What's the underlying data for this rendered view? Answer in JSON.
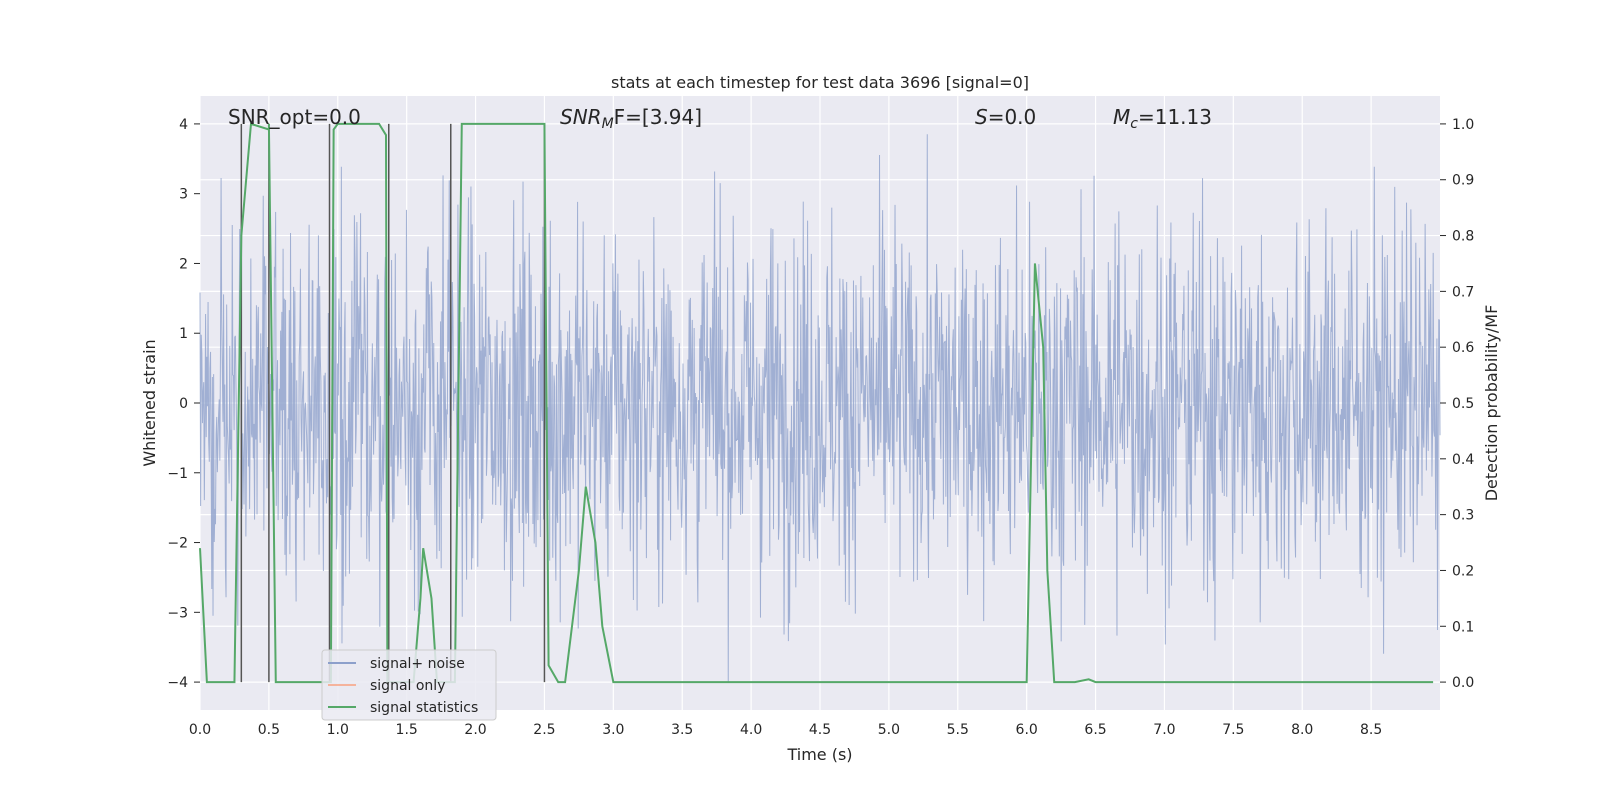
{
  "chart_data": {
    "type": "line",
    "title": "stats at each timestep for test data 3696 [signal=0]",
    "xlabel": "Time (s)",
    "ylabel": "Whitened strain",
    "y2label": "Detection probability/MF",
    "xlim": [
      0,
      9.0
    ],
    "ylim": [
      -4.4,
      4.4
    ],
    "y2lim": [
      -0.05,
      1.05
    ],
    "x_ticks": [
      "0.0",
      "0.5",
      "1.0",
      "1.5",
      "2.0",
      "2.5",
      "3.0",
      "3.5",
      "4.0",
      "4.5",
      "5.0",
      "5.5",
      "6.0",
      "6.5",
      "7.0",
      "7.5",
      "8.0",
      "8.5"
    ],
    "y_ticks": [
      "4",
      "3",
      "2",
      "1",
      "0",
      "−1",
      "−2",
      "−3",
      "−4"
    ],
    "y2_ticks": [
      "1.0",
      "0.9",
      "0.8",
      "0.7",
      "0.6",
      "0.5",
      "0.4",
      "0.3",
      "0.2",
      "0.1",
      "0.0"
    ],
    "grid": true,
    "legend_position": "lower-left",
    "annotations": {
      "snr_opt": "SNR_opt=0.0",
      "snr_mf_base": "SNR",
      "snr_mf_sub": "M",
      "snr_mf_rest": "F=[3.94]",
      "s_base": "S",
      "s_rest": "=0.0",
      "mc_base": "M",
      "mc_sub": "c",
      "mc_rest": "=11.13"
    },
    "series": [
      {
        "name": "signal+ noise",
        "color": "#8da0cb",
        "noise_amplitude_typical": 1.6,
        "noise_amplitude_peak": 4.0
      },
      {
        "name": "signal only",
        "color": "#fc8d62",
        "values": []
      },
      {
        "name": "signal statistics",
        "color": "#55a868",
        "x": [
          0.0,
          0.05,
          0.25,
          0.3,
          0.37,
          0.5,
          0.5,
          0.55,
          0.6,
          0.9,
          0.95,
          0.97,
          1.0,
          1.3,
          1.35,
          1.36,
          1.42,
          1.5,
          1.55,
          1.6,
          1.62,
          1.68,
          1.72,
          1.8,
          1.85,
          1.9,
          2.5,
          2.53,
          2.6,
          2.65,
          2.75,
          2.8,
          2.87,
          2.92,
          3.0,
          3.1,
          6.0,
          6.06,
          6.12,
          6.15,
          6.2,
          6.35,
          6.45,
          6.5,
          8.95
        ],
        "values": [
          0.24,
          0.0,
          0.0,
          0.8,
          1.0,
          0.99,
          1.0,
          0.0,
          0.0,
          0.0,
          0.0,
          0.99,
          1.0,
          1.0,
          0.98,
          0.0,
          0.0,
          0.0,
          0.0,
          0.15,
          0.24,
          0.15,
          0.0,
          0.0,
          0.0,
          1.0,
          1.0,
          0.03,
          0.0,
          0.0,
          0.2,
          0.35,
          0.25,
          0.1,
          0.0,
          0.0,
          0.0,
          0.75,
          0.6,
          0.2,
          0.0,
          0.0,
          0.005,
          0.0,
          0.0
        ]
      }
    ],
    "vlines_x": [
      0.3,
      0.5,
      0.94,
      1.37,
      1.82,
      2.5
    ]
  }
}
